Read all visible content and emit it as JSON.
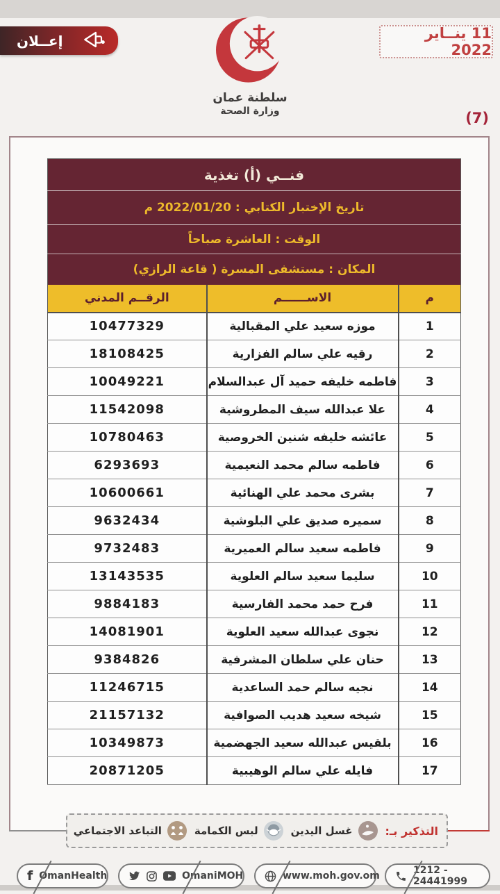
{
  "header": {
    "date": "11 ينــاير 2022",
    "announcement_label": "إعــلان",
    "logo": {
      "line1": "سلطنة عمان",
      "line2": "وزارة الصحة"
    },
    "page_number": "(7)"
  },
  "table": {
    "title": "فنــي (أ) تغذية",
    "exam_date": "تاريخ الإختبار الكتابي : 2022/01/20 م",
    "time": "الوقت : العاشرة صباحاً",
    "place": "المكان : مستشفى المسرة ( قاعة الرازي)",
    "columns": {
      "serial": "م",
      "name": "الاســــــم",
      "civil_id": "الرقــم المدني"
    },
    "rows": [
      {
        "serial": "1",
        "name": "موزه سعيد علي المقبالية",
        "civil_id": "10477329"
      },
      {
        "serial": "2",
        "name": "رقيه علي سالم الفزارية",
        "civil_id": "18108425"
      },
      {
        "serial": "3",
        "name": "فاطمه خليفه حميد آل عبدالسلام",
        "civil_id": "10049221"
      },
      {
        "serial": "4",
        "name": "علا عبدالله سيف المطروشية",
        "civil_id": "11542098"
      },
      {
        "serial": "5",
        "name": "عائشه خليفه شنين الخروصية",
        "civil_id": "10780463"
      },
      {
        "serial": "6",
        "name": "فاطمه سالم محمد النعيمية",
        "civil_id": "6293693"
      },
      {
        "serial": "7",
        "name": "بشرى محمد علي الهنائية",
        "civil_id": "10600661"
      },
      {
        "serial": "8",
        "name": "سميره صديق علي البلوشية",
        "civil_id": "9632434"
      },
      {
        "serial": "9",
        "name": "فاطمه سعيد سالم العميرية",
        "civil_id": "9732483"
      },
      {
        "serial": "10",
        "name": "سليما سعيد سالم العلوية",
        "civil_id": "13143535"
      },
      {
        "serial": "11",
        "name": "فرح حمد محمد الفارسية",
        "civil_id": "9884183"
      },
      {
        "serial": "12",
        "name": "نجوى عبدالله سعيد العلوية",
        "civil_id": "14081901"
      },
      {
        "serial": "13",
        "name": "حنان علي سلطان المشرفية",
        "civil_id": "9384826"
      },
      {
        "serial": "14",
        "name": "نجيه سالم حمد الساعدية",
        "civil_id": "11246715"
      },
      {
        "serial": "15",
        "name": "شيخه سعيد هديب الصوافية",
        "civil_id": "21157132"
      },
      {
        "serial": "16",
        "name": "بلقيس عبدالله سعيد الجهضمية",
        "civil_id": "10349873"
      },
      {
        "serial": "17",
        "name": "فايله علي سالم الوهيبية",
        "civil_id": "20871205"
      }
    ]
  },
  "reminder": {
    "label": "التذكير بـ:",
    "items": [
      {
        "label": "غسل اليدين",
        "icon": "hand-wash-icon"
      },
      {
        "label": "لبس الكمامة",
        "icon": "face-mask-icon"
      },
      {
        "label": "التباعد الاجتماعي",
        "icon": "social-distance-icon"
      }
    ]
  },
  "footer": {
    "facebook_glyph": "f",
    "facebook": "OmanHealth",
    "social": "OmaniMOH",
    "website": "www.moh.gov.om",
    "phone": "1212 - 24441999"
  },
  "colors": {
    "maroon": "#652533",
    "gold": "#eebd2a",
    "badge_red": "#b92a28",
    "date_red": "#c04040",
    "reminder_red": "#c0322f",
    "crescent_red": "#c4373c"
  }
}
